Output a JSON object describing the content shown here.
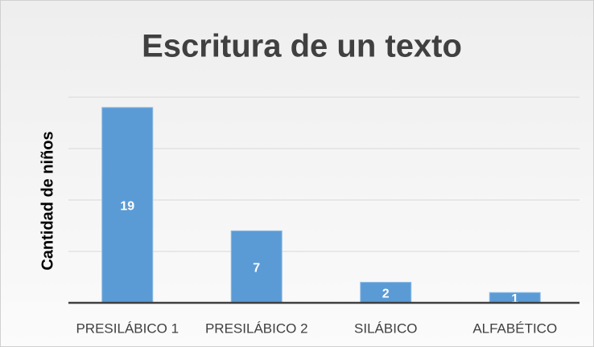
{
  "chart_data": {
    "type": "bar",
    "title": "Escritura de un texto",
    "y_label": "Cantidad de niños",
    "categories": [
      "PRESILÁBICO 1",
      "PRESILÁBICO 2",
      "SILÁBICO",
      "ALFABÉTICO"
    ],
    "values": [
      19,
      7,
      2,
      1
    ],
    "color": "#5b9bd5",
    "ylim": [
      0,
      20
    ],
    "yticks": [
      0,
      5,
      10,
      15,
      20
    ],
    "grid": true
  }
}
